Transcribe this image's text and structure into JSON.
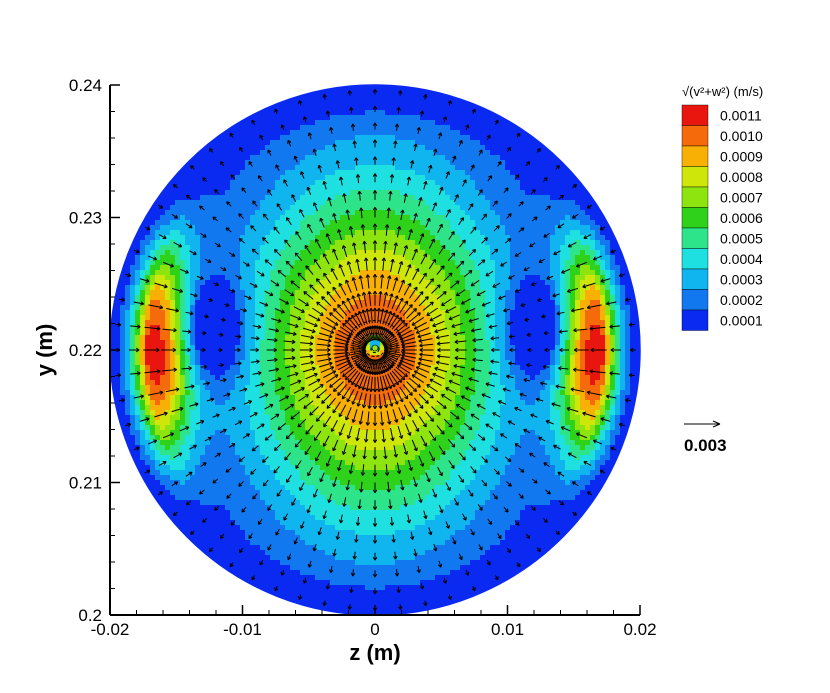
{
  "chart_data": {
    "type": "contour-vector",
    "title": "",
    "xlabel": "z  (m)",
    "ylabel": "y  (m)",
    "xlim": [
      -0.02,
      0.02
    ],
    "ylim": [
      0.2,
      0.24
    ],
    "x_ticks": [
      "-0.02",
      "-0.01",
      "0",
      "0.01",
      "0.02"
    ],
    "y_ticks": [
      "0.2",
      "0.21",
      "0.22",
      "0.23",
      "0.24"
    ],
    "circle_center": [
      0,
      0.22
    ],
    "circle_radius": 0.02,
    "legend": {
      "title": "√(v²+w²)  (m/s)",
      "placement": "top-right",
      "levels": [
        "0.0011",
        "0.0010",
        "0.0009",
        "0.0008",
        "0.0007",
        "0.0006",
        "0.0005",
        "0.0004",
        "0.0003",
        "0.0002",
        "0.0001"
      ],
      "colors": [
        "#e8160e",
        "#f56a0a",
        "#f9b004",
        "#cfe60b",
        "#8ee40f",
        "#2ed21a",
        "#2ee48b",
        "#1ee0e0",
        "#10b4ee",
        "#1278f0",
        "#0a2af2"
      ]
    },
    "reference_vector": {
      "label": "0.003"
    },
    "contour_field": {
      "min": 0.0001,
      "max": 0.00115,
      "peaks": [
        {
          "z": -0.0165,
          "y": 0.22,
          "value": 0.00115
        },
        {
          "z": 0.0165,
          "y": 0.22,
          "value": 0.00115
        },
        {
          "z": 0.0,
          "y": 0.22,
          "value": 0.0011
        }
      ],
      "minima": [
        {
          "z": -0.0125,
          "y": 0.2215,
          "value": 0.0003
        },
        {
          "z": 0.0125,
          "y": 0.2215,
          "value": 0.0003
        },
        {
          "z": 0.0,
          "y": 0.2225,
          "value": 0.0002
        }
      ]
    }
  }
}
